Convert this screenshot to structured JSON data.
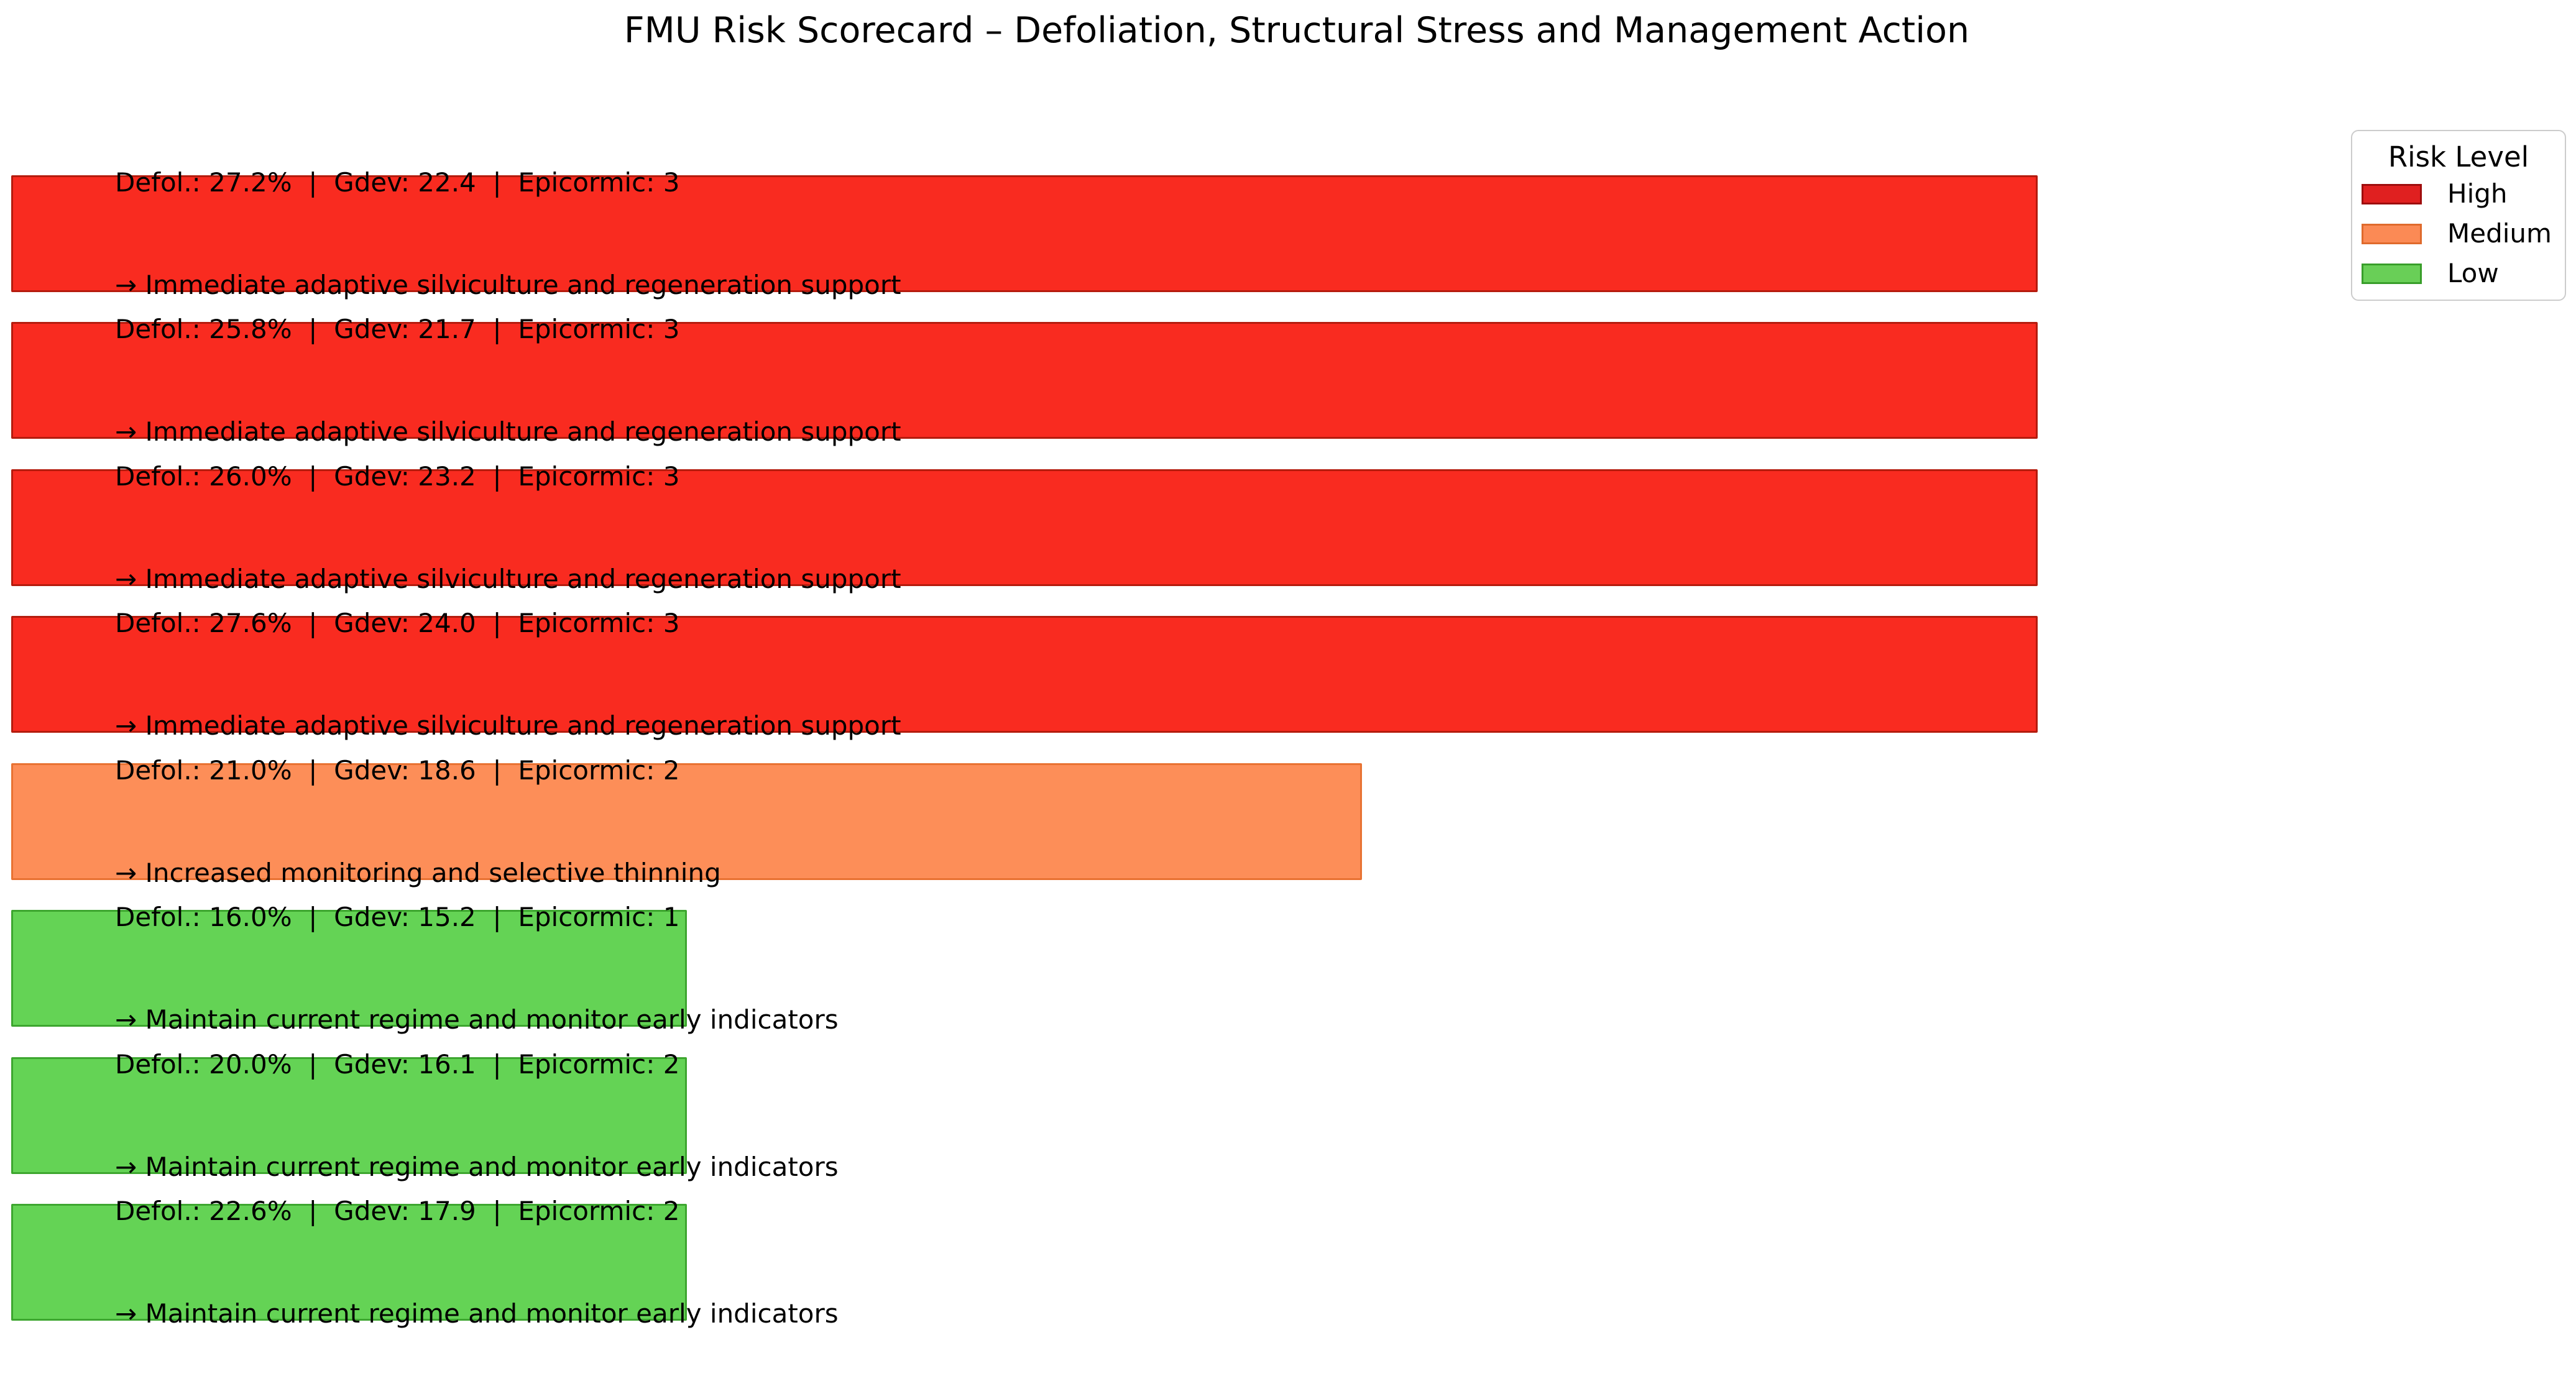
{
  "title": "FMU Risk Scorecard – Defoliation, Structural Stress and Management Action",
  "colors": {
    "background": "#ffffff",
    "text": "#000000",
    "high_fill": "#f92b20",
    "high_edge": "#b51c0e",
    "medium_fill": "#fd8e58",
    "medium_edge": "#e87232",
    "low_fill": "#64d355",
    "low_edge": "#3da62f",
    "legend_border": "#cccccc"
  },
  "legend": {
    "title": "Risk Level",
    "items": [
      {
        "label": "High",
        "fill": "#e02020",
        "edge": "#9e0d0d"
      },
      {
        "label": "Medium",
        "fill": "#fb8a55",
        "edge": "#df6a2c"
      },
      {
        "label": "Low",
        "fill": "#69cf57",
        "edge": "#389e2a"
      }
    ]
  },
  "chart_data": {
    "type": "bar",
    "orientation": "horizontal",
    "title": "FMU Risk Scorecard – Defoliation, Structural Stress and Management Action",
    "legend_title": "Risk Level",
    "legend_entries": [
      "High",
      "Medium",
      "Low"
    ],
    "axes_visible": false,
    "grid": false,
    "value_encoding": "bar length encodes risk score: High=3, Medium=2, Low=1",
    "xlim": [
      0,
      3.05
    ],
    "bars": [
      {
        "risk_level": "High",
        "bar_value": 3,
        "defoliation_pct": 27.2,
        "gdev": 22.4,
        "epicormic": 3,
        "metrics_line": "Defol.: 27.2%  |  Gdev: 22.4  |  Epicormic: 3",
        "action_line": "→ Immediate adaptive silviculture and regeneration support"
      },
      {
        "risk_level": "High",
        "bar_value": 3,
        "defoliation_pct": 25.8,
        "gdev": 21.7,
        "epicormic": 3,
        "metrics_line": "Defol.: 25.8%  |  Gdev: 21.7  |  Epicormic: 3",
        "action_line": "→ Immediate adaptive silviculture and regeneration support"
      },
      {
        "risk_level": "High",
        "bar_value": 3,
        "defoliation_pct": 26.0,
        "gdev": 23.2,
        "epicormic": 3,
        "metrics_line": "Defol.: 26.0%  |  Gdev: 23.2  |  Epicormic: 3",
        "action_line": "→ Immediate adaptive silviculture and regeneration support"
      },
      {
        "risk_level": "High",
        "bar_value": 3,
        "defoliation_pct": 27.6,
        "gdev": 24.0,
        "epicormic": 3,
        "metrics_line": "Defol.: 27.6%  |  Gdev: 24.0  |  Epicormic: 3",
        "action_line": "→ Immediate adaptive silviculture and regeneration support"
      },
      {
        "risk_level": "Medium",
        "bar_value": 2,
        "defoliation_pct": 21.0,
        "gdev": 18.6,
        "epicormic": 2,
        "metrics_line": "Defol.: 21.0%  |  Gdev: 18.6  |  Epicormic: 2",
        "action_line": "→ Increased monitoring and selective thinning"
      },
      {
        "risk_level": "Low",
        "bar_value": 1,
        "defoliation_pct": 16.0,
        "gdev": 15.2,
        "epicormic": 1,
        "metrics_line": "Defol.: 16.0%  |  Gdev: 15.2  |  Epicormic: 1",
        "action_line": "→ Maintain current regime and monitor early indicators"
      },
      {
        "risk_level": "Low",
        "bar_value": 1,
        "defoliation_pct": 20.0,
        "gdev": 16.1,
        "epicormic": 2,
        "metrics_line": "Defol.: 20.0%  |  Gdev: 16.1  |  Epicormic: 2",
        "action_line": "→ Maintain current regime and monitor early indicators"
      },
      {
        "risk_level": "Low",
        "bar_value": 1,
        "defoliation_pct": 22.6,
        "gdev": 17.9,
        "epicormic": 2,
        "metrics_line": "Defol.: 22.6%  |  Gdev: 17.9  |  Epicormic: 2",
        "action_line": "→ Maintain current regime and monitor early indicators"
      }
    ]
  }
}
